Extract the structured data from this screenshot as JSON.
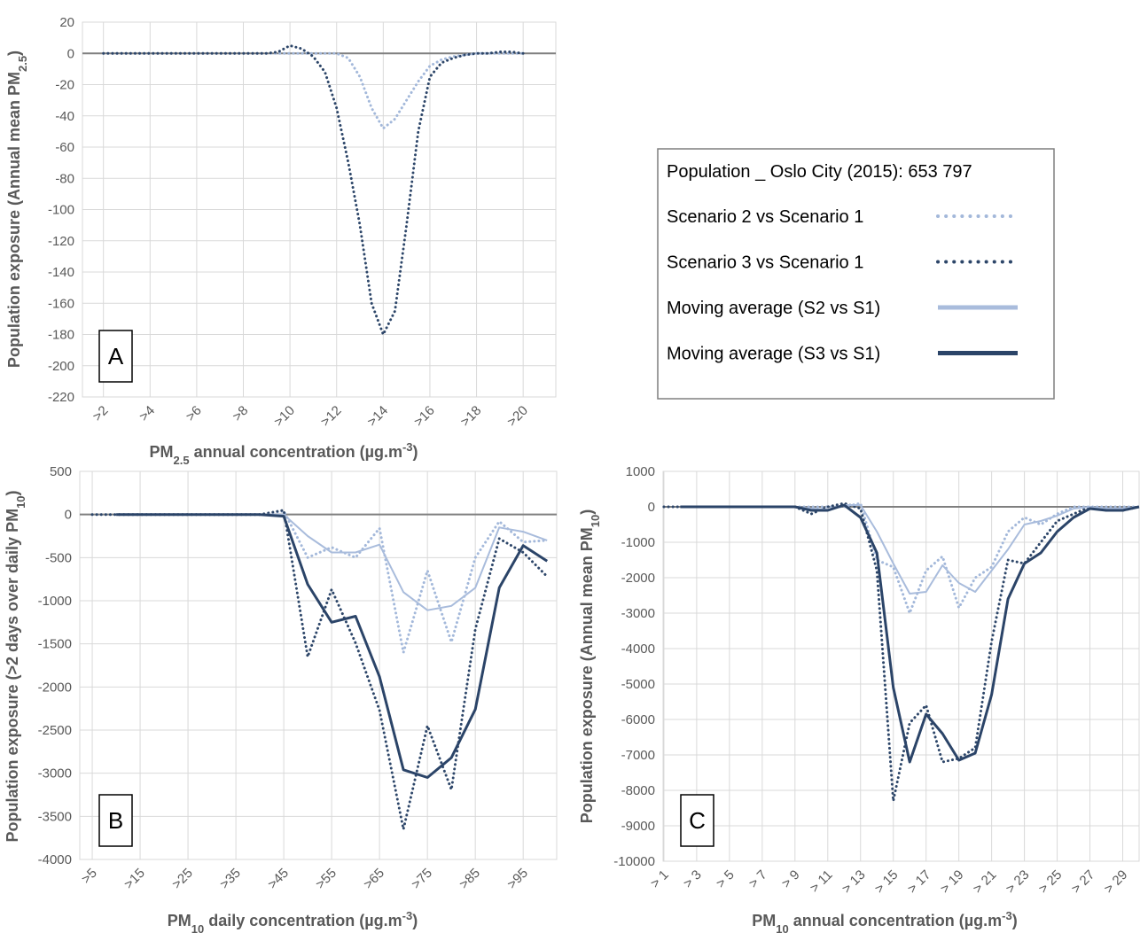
{
  "legend": {
    "title": "Population _ Oslo City (2015): 653 797"
  },
  "chart_data": [
    {
      "type": "line",
      "panel_label": "A",
      "y_label": [
        {
          "text": "Population exposure (Annual mean PM"
        },
        {
          "text": "2.5",
          "script": "sub"
        },
        {
          "text": ")"
        }
      ],
      "x_label": [
        {
          "text": "PM"
        },
        {
          "text": "2.5",
          "script": "sub"
        },
        {
          "text": " annual concentration (µg.m"
        },
        {
          "text": "-3",
          "script": "super"
        },
        {
          "text": ")"
        }
      ],
      "x": [
        2,
        2.5,
        3,
        3.5,
        4,
        4.5,
        5,
        5.5,
        6,
        6.5,
        7,
        7.5,
        8,
        8.5,
        9,
        9.5,
        10,
        10.5,
        11,
        11.5,
        12,
        12.5,
        13,
        13.5,
        14,
        14.5,
        15,
        15.5,
        16,
        16.5,
        17,
        17.5,
        18,
        18.5,
        19,
        19.5,
        20
      ],
      "xlim": [
        1.1,
        21.4
      ],
      "xticks": [
        {
          "value": 2,
          "label": ">2"
        },
        {
          "value": 4,
          "label": ">4"
        },
        {
          "value": 6,
          "label": ">6"
        },
        {
          "value": 8,
          "label": ">8"
        },
        {
          "value": 10,
          "label": ">10"
        },
        {
          "value": 12,
          "label": ">12"
        },
        {
          "value": 14,
          "label": ">14"
        },
        {
          "value": 16,
          "label": ">16"
        },
        {
          "value": 18,
          "label": ">18"
        },
        {
          "value": 20,
          "label": ">20"
        }
      ],
      "ylim": [
        -220,
        20
      ],
      "yticks": [
        20,
        0,
        -20,
        -40,
        -60,
        -80,
        -100,
        -120,
        -140,
        -160,
        -180,
        -200,
        -220
      ],
      "grid": true,
      "series": [
        {
          "name": "Scenario 2 vs Scenario 1",
          "color": "#a3b8da",
          "style": "dotted",
          "values": [
            0,
            0,
            0,
            0,
            0,
            0,
            0,
            0,
            0,
            0,
            0,
            0,
            0,
            0,
            0,
            0,
            0,
            0,
            0,
            0,
            0,
            -3,
            -15,
            -35,
            -48,
            -42,
            -30,
            -18,
            -8,
            -4,
            -2,
            -1,
            0,
            0,
            0,
            0,
            0
          ]
        },
        {
          "name": "Scenario 3 vs Scenario 1",
          "color": "#2d4669",
          "style": "dotted",
          "values": [
            0,
            0,
            0,
            0,
            0,
            0,
            0,
            0,
            0,
            0,
            0,
            0,
            0,
            0,
            0,
            1,
            5,
            3,
            -2,
            -12,
            -35,
            -70,
            -110,
            -160,
            -180,
            -165,
            -110,
            -50,
            -15,
            -6,
            -3,
            -1,
            0,
            0,
            1,
            1,
            0
          ]
        }
      ]
    },
    {
      "type": "line",
      "panel_label": "B",
      "y_label": [
        {
          "text": "Population exposure (>2 days over daily PM"
        },
        {
          "text": "10",
          "script": "sub"
        },
        {
          "text": ")"
        }
      ],
      "x_label": [
        {
          "text": "PM"
        },
        {
          "text": "10",
          "script": "sub"
        },
        {
          "text": " daily concentration (µg.m"
        },
        {
          "text": "-3",
          "script": "super"
        },
        {
          "text": ")"
        }
      ],
      "x": [
        5,
        10,
        15,
        20,
        25,
        30,
        35,
        40,
        45,
        50,
        55,
        60,
        65,
        70,
        75,
        80,
        85,
        90,
        95,
        100
      ],
      "xlim": [
        2.4,
        102
      ],
      "xticks": [
        {
          "value": 5,
          "label": ">5"
        },
        {
          "value": 15,
          "label": ">15"
        },
        {
          "value": 25,
          "label": ">25"
        },
        {
          "value": 35,
          "label": ">35"
        },
        {
          "value": 45,
          "label": ">45"
        },
        {
          "value": 55,
          "label": ">55"
        },
        {
          "value": 65,
          "label": ">65"
        },
        {
          "value": 75,
          "label": ">75"
        },
        {
          "value": 85,
          "label": ">85"
        },
        {
          "value": 95,
          "label": ">95"
        }
      ],
      "ylim": [
        -4000,
        500
      ],
      "yticks": [
        500,
        0,
        -500,
        -1000,
        -1500,
        -2000,
        -2500,
        -3000,
        -3500,
        -4000
      ],
      "grid": true,
      "series": [
        {
          "name": "Scenario 2 vs Scenario 1",
          "color": "#a3b8da",
          "style": "dotted",
          "values": [
            0,
            0,
            0,
            0,
            0,
            0,
            0,
            0,
            40,
            -500,
            -380,
            -500,
            -160,
            -1600,
            -650,
            -1480,
            -500,
            -80,
            -320,
            -300
          ]
        },
        {
          "name": "Scenario 3 vs Scenario 1",
          "color": "#2d4669",
          "style": "dotted",
          "values": [
            0,
            0,
            0,
            0,
            0,
            0,
            0,
            0,
            50,
            -1650,
            -870,
            -1490,
            -2270,
            -3650,
            -2450,
            -3190,
            -1330,
            -280,
            -440,
            -720
          ]
        },
        {
          "name": "Moving average (S2 vs S1)",
          "color": "#a9bcdc",
          "style": "solid",
          "values": [
            null,
            0,
            0,
            0,
            0,
            0,
            0,
            0,
            0,
            -250,
            -440,
            -440,
            -350,
            -900,
            -1110,
            -1060,
            -850,
            -150,
            -200,
            -300
          ]
        },
        {
          "name": "Moving average (S3 vs S1)",
          "color": "#2b4468",
          "style": "solid",
          "values": [
            null,
            0,
            0,
            0,
            0,
            0,
            0,
            0,
            -20,
            -810,
            -1250,
            -1180,
            -1880,
            -2960,
            -3050,
            -2820,
            -2260,
            -850,
            -360,
            -540
          ]
        }
      ]
    },
    {
      "type": "line",
      "panel_label": "C",
      "y_label": [
        {
          "text": "Population exposure (Annual mean PM"
        },
        {
          "text": "10",
          "script": "sub"
        },
        {
          "text": ")"
        }
      ],
      "x_label": [
        {
          "text": "PM"
        },
        {
          "text": "10",
          "script": "sub"
        },
        {
          "text": " annual concentration (µg.m"
        },
        {
          "text": "-3",
          "script": "super"
        },
        {
          "text": ")"
        }
      ],
      "x": [
        1,
        2,
        3,
        4,
        5,
        6,
        7,
        8,
        9,
        10,
        11,
        12,
        13,
        14,
        15,
        16,
        17,
        18,
        19,
        20,
        21,
        22,
        23,
        24,
        25,
        26,
        27,
        28,
        29,
        30
      ],
      "xlim": [
        0.95,
        30
      ],
      "xticks": [
        {
          "value": 1,
          "label": "> 1"
        },
        {
          "value": 3,
          "label": "> 3"
        },
        {
          "value": 5,
          "label": "> 5"
        },
        {
          "value": 7,
          "label": "> 7"
        },
        {
          "value": 9,
          "label": "> 9"
        },
        {
          "value": 11,
          "label": "> 11"
        },
        {
          "value": 13,
          "label": "> 13"
        },
        {
          "value": 15,
          "label": "> 15"
        },
        {
          "value": 17,
          "label": "> 17"
        },
        {
          "value": 19,
          "label": "> 19"
        },
        {
          "value": 21,
          "label": "> 21"
        },
        {
          "value": 23,
          "label": "> 23"
        },
        {
          "value": 25,
          "label": "> 25"
        },
        {
          "value": 27,
          "label": "> 27"
        },
        {
          "value": 29,
          "label": "> 29"
        }
      ],
      "ylim": [
        -10000,
        1000
      ],
      "yticks": [
        1000,
        0,
        -1000,
        -2000,
        -3000,
        -4000,
        -5000,
        -6000,
        -7000,
        -8000,
        -9000,
        -10000
      ],
      "grid": true,
      "series": [
        {
          "name": "Scenario 2 vs Scenario 1",
          "color": "#a3b8da",
          "style": "dotted",
          "values": [
            0,
            0,
            0,
            0,
            0,
            0,
            0,
            0,
            0,
            0,
            0,
            0,
            100,
            -1500,
            -1700,
            -3000,
            -1800,
            -1400,
            -2850,
            -2000,
            -1700,
            -700,
            -300,
            -500,
            -200,
            0,
            0,
            0,
            0,
            0
          ]
        },
        {
          "name": "Scenario 3 vs Scenario 1",
          "color": "#2d4669",
          "style": "dotted",
          "values": [
            0,
            0,
            0,
            0,
            0,
            0,
            0,
            0,
            0,
            -200,
            0,
            100,
            -50,
            -1800,
            -8300,
            -6100,
            -5600,
            -7200,
            -7100,
            -6800,
            -3800,
            -1500,
            -1600,
            -1000,
            -400,
            -200,
            0,
            -100,
            -100,
            0
          ]
        },
        {
          "name": "Moving average (S2 vs S1)",
          "color": "#a9bcdc",
          "style": "solid",
          "values": [
            null,
            0,
            0,
            0,
            0,
            0,
            0,
            0,
            0,
            -50,
            -80,
            50,
            50,
            -700,
            -1600,
            -2450,
            -2400,
            -1650,
            -2150,
            -2400,
            -1800,
            -1200,
            -500,
            -400,
            -250,
            -50,
            0,
            -50,
            -50,
            0
          ]
        },
        {
          "name": "Moving average (S3 vs S1)",
          "color": "#2b4468",
          "style": "solid",
          "values": [
            null,
            0,
            0,
            0,
            0,
            0,
            0,
            0,
            0,
            -100,
            -100,
            50,
            -300,
            -1300,
            -5100,
            -7200,
            -5850,
            -6400,
            -7150,
            -6950,
            -5300,
            -2600,
            -1600,
            -1300,
            -700,
            -300,
            -50,
            -100,
            -100,
            0
          ]
        }
      ]
    }
  ]
}
